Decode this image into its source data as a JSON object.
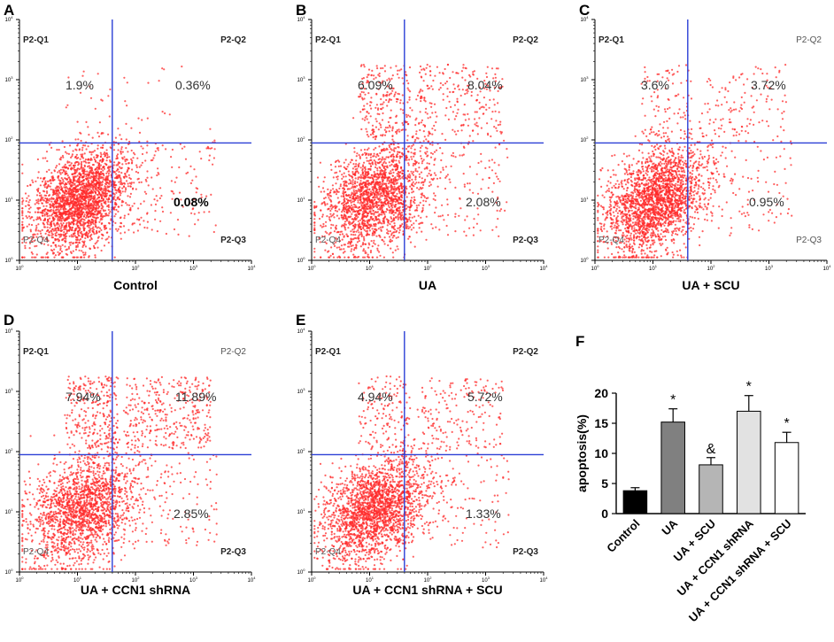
{
  "chart_data": [
    {
      "type": "scatter",
      "panel": "A",
      "xlabel": "Control",
      "quadrant_names": [
        "P2-Q1",
        "P2-Q2",
        "P2-Q3",
        "P2-Q4"
      ],
      "quadrant_percents": {
        "Q1": "1.9%",
        "Q2": "0.36%",
        "Q3": "0.08%"
      },
      "x_ticks": [
        "10^0",
        "10^1",
        "10^2",
        "10^3",
        "10^4"
      ],
      "y_ticks": [
        "10^0",
        "10^1",
        "10^2",
        "10^3",
        "10^4"
      ],
      "xlim": [
        0,
        4
      ],
      "ylim": [
        0,
        4
      ],
      "gate_x_log": 1.6,
      "gate_y_log": 1.95,
      "population": {
        "center_x_log": 1.05,
        "center_y_log": 1.0,
        "spread": 0.42,
        "upper_fraction": 0.02
      }
    },
    {
      "type": "scatter",
      "panel": "B",
      "xlabel": "UA",
      "quadrant_names": [
        "P2-Q1",
        "P2-Q2",
        "P2-Q3",
        "P2-Q4"
      ],
      "quadrant_percents": {
        "Q1": "6.09%",
        "Q2": "8.04%",
        "Q3": "2.08%"
      },
      "x_ticks": [
        "10^0",
        "10^1",
        "10^2",
        "10^3",
        "10^4"
      ],
      "y_ticks": [
        "10^0",
        "10^1",
        "10^2",
        "10^3",
        "10^4"
      ],
      "xlim": [
        0,
        4
      ],
      "ylim": [
        0,
        4
      ],
      "gate_x_log": 1.6,
      "gate_y_log": 1.95,
      "population": {
        "center_x_log": 1.1,
        "center_y_log": 1.05,
        "spread": 0.45,
        "upper_fraction": 0.16
      }
    },
    {
      "type": "scatter",
      "panel": "C",
      "xlabel": "UA + SCU",
      "quadrant_names": [
        "P2-Q1",
        "P2-Q2",
        "P2-Q3",
        "P2-Q4"
      ],
      "quadrant_percents": {
        "Q1": "3.6%",
        "Q2": "3.72%",
        "Q3": "0.95%"
      },
      "x_ticks": [
        "10^0",
        "10^1",
        "10^2",
        "10^3",
        "10^4"
      ],
      "y_ticks": [
        "10^0",
        "10^1",
        "10^2",
        "10^3",
        "10^4"
      ],
      "xlim": [
        0,
        4
      ],
      "ylim": [
        0,
        4
      ],
      "gate_x_log": 1.6,
      "gate_y_log": 1.95,
      "population": {
        "center_x_log": 1.05,
        "center_y_log": 1.0,
        "spread": 0.44,
        "upper_fraction": 0.08
      }
    },
    {
      "type": "scatter",
      "panel": "D",
      "xlabel": "UA + CCN1 shRNA",
      "quadrant_names": [
        "P2-Q1",
        "P2-Q2",
        "P2-Q3",
        "P2-Q4"
      ],
      "quadrant_percents": {
        "Q1": "7.94%",
        "Q2": "11.89%",
        "Q3": "2.85%"
      },
      "x_ticks": [
        "10^0",
        "10^1",
        "10^2",
        "10^3",
        "10^4"
      ],
      "y_ticks": [
        "10^0",
        "10^1",
        "10^2",
        "10^3",
        "10^4"
      ],
      "xlim": [
        0,
        4
      ],
      "ylim": [
        0,
        4
      ],
      "gate_x_log": 1.6,
      "gate_y_log": 1.95,
      "population": {
        "center_x_log": 1.1,
        "center_y_log": 1.05,
        "spread": 0.47,
        "upper_fraction": 0.22
      }
    },
    {
      "type": "scatter",
      "panel": "E",
      "xlabel": "UA + CCN1 shRNA + SCU",
      "quadrant_names": [
        "P2-Q1",
        "P2-Q2",
        "P2-Q3",
        "P2-Q4"
      ],
      "quadrant_percents": {
        "Q1": "4.94%",
        "Q2": "5.72%",
        "Q3": "1.33%"
      },
      "x_ticks": [
        "10^0",
        "10^1",
        "10^2",
        "10^3",
        "10^4"
      ],
      "y_ticks": [
        "10^0",
        "10^1",
        "10^2",
        "10^3",
        "10^4"
      ],
      "xlim": [
        0,
        4
      ],
      "ylim": [
        0,
        4
      ],
      "gate_x_log": 1.6,
      "gate_y_log": 1.95,
      "population": {
        "center_x_log": 1.1,
        "center_y_log": 1.05,
        "spread": 0.44,
        "upper_fraction": 0.12
      }
    },
    {
      "type": "bar",
      "panel": "F",
      "ylabel": "apoptosis(%)",
      "categories": [
        "Control",
        "UA",
        "UA + SCU",
        "UA + CCN1 shRNA",
        "UA + CCN1 shRNA + SCU"
      ],
      "values": [
        3.8,
        15.2,
        8.1,
        17.0,
        11.8
      ],
      "errors": [
        0.5,
        2.2,
        1.2,
        2.6,
        1.7
      ],
      "annotations": [
        "",
        "*",
        "&",
        "*",
        "*"
      ],
      "bar_colors": [
        "#000000",
        "#808080",
        "#b5b5b5",
        "#e2e2e2",
        "#ffffff"
      ],
      "ylim": [
        0,
        20
      ],
      "yticks": [
        0,
        5,
        10,
        15,
        20
      ]
    }
  ],
  "colors": {
    "dots": "#ff2a2a",
    "gate": "#2b3fd6",
    "axis": "#000000"
  }
}
